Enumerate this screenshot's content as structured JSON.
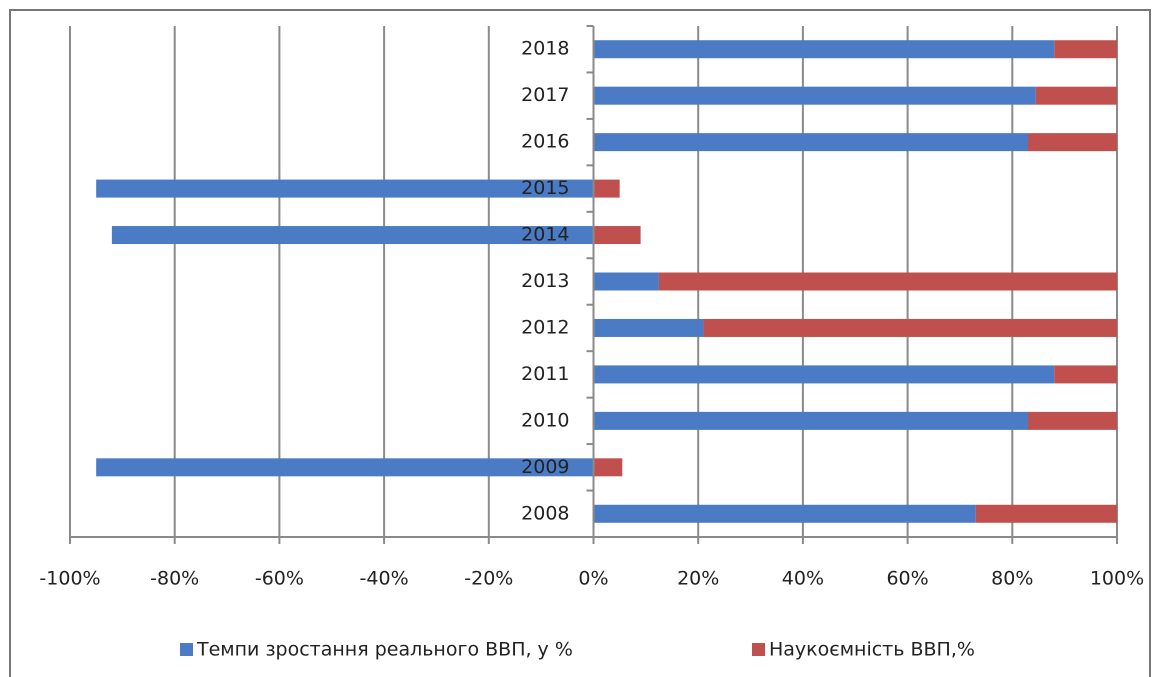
{
  "chart_data": {
    "type": "stacked-bar-horizontal",
    "categories": [
      "2008",
      "2009",
      "2010",
      "2011",
      "2012",
      "2013",
      "2014",
      "2015",
      "2016",
      "2017",
      "2018"
    ],
    "series": [
      {
        "name": "Темпи зростання реального ВВП, у %",
        "color": "#4a7bc4",
        "values": [
          73,
          -95,
          83,
          88,
          21,
          12.5,
          -92,
          -95,
          83,
          84.5,
          88
        ]
      },
      {
        "name": "Наукоємність ВВП,%",
        "color": "#c0504d",
        "values": [
          27,
          5.5,
          17,
          12,
          79,
          87.5,
          9,
          5,
          17,
          15.5,
          12
        ]
      }
    ],
    "xlim": [
      -100,
      100
    ],
    "xticks": [
      {
        "value": -100,
        "label": "-100%"
      },
      {
        "value": -80,
        "label": "-80%"
      },
      {
        "value": -60,
        "label": "-60%"
      },
      {
        "value": -40,
        "label": "-40%"
      },
      {
        "value": -20,
        "label": "-20%"
      },
      {
        "value": 0,
        "label": "0%"
      },
      {
        "value": 20,
        "label": "20%"
      },
      {
        "value": 40,
        "label": "40%"
      },
      {
        "value": 60,
        "label": "60%"
      },
      {
        "value": 80,
        "label": "80%"
      },
      {
        "value": 100,
        "label": "100%"
      }
    ],
    "grid": true,
    "legend": "bottom"
  }
}
